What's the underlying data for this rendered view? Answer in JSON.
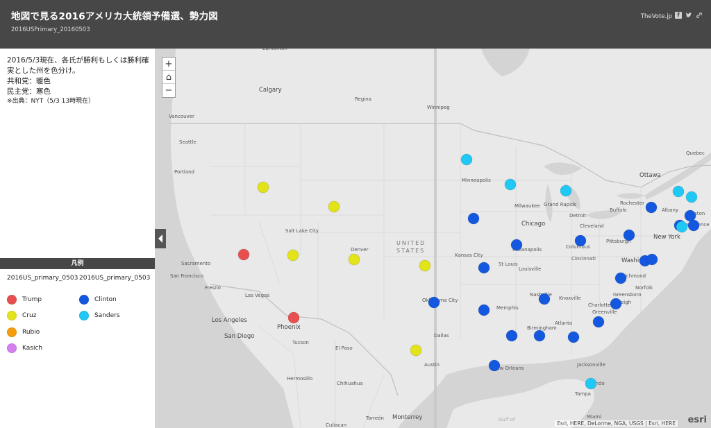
{
  "header": {
    "title": "地図で見る2016アメリカ大統領予備選、勢力図",
    "subtitle": "2016USPrimary_20160503",
    "brand": "TheVote.jp",
    "social_icons": [
      "facebook-icon",
      "twitter-icon",
      "link-icon"
    ]
  },
  "description": {
    "line1": "2016/5/3現在、各氏が勝利もしくは勝利確",
    "line2": "実とした州を色分け。",
    "line3": "共和党：暖色",
    "line4": "民主党：寒色",
    "line5": "※出典：NYT（5/3 13時現在）"
  },
  "legend": {
    "title": "凡例",
    "republican": {
      "header": "2016US_primary_0503",
      "items": [
        {
          "label": "Trump",
          "color": "#e85050"
        },
        {
          "label": "Cruz",
          "color": "#e3e31a"
        },
        {
          "label": "Rubio",
          "color": "#f59e0b"
        },
        {
          "label": "Kasich",
          "color": "#d580f0"
        }
      ]
    },
    "democratic": {
      "header": "2016US_primary_0503",
      "items": [
        {
          "label": "Clinton",
          "color": "#1458e0"
        },
        {
          "label": "Sanders",
          "color": "#20c8f5"
        }
      ]
    }
  },
  "map": {
    "zoom_in": "+",
    "home": "⌂",
    "zoom_out": "−",
    "attribution": "Esri, HERE, DeLorme, NGA, USGS | Esri, HERE",
    "logo": "esri",
    "country_label": "UNITED STATES",
    "water_label": "Gulf of Mexico",
    "places": [
      {
        "name": "Edmonton"
      },
      {
        "name": "Calgary"
      },
      {
        "name": "Regina"
      },
      {
        "name": "Winnipeg"
      },
      {
        "name": "Vancouver"
      },
      {
        "name": "Seattle"
      },
      {
        "name": "Portland"
      },
      {
        "name": "Quebec"
      },
      {
        "name": "Ottawa"
      },
      {
        "name": "Minneapolis"
      },
      {
        "name": "Milwaukee"
      },
      {
        "name": "Grand Rapids"
      },
      {
        "name": "Detroit"
      },
      {
        "name": "Rochester"
      },
      {
        "name": "Buffalo"
      },
      {
        "name": "Albany"
      },
      {
        "name": "Boston"
      },
      {
        "name": "Providence"
      },
      {
        "name": "Chicago"
      },
      {
        "name": "Cleveland"
      },
      {
        "name": "Salt Lake City"
      },
      {
        "name": "Denver"
      },
      {
        "name": "Sacramento"
      },
      {
        "name": "San Francisco"
      },
      {
        "name": "Fresno"
      },
      {
        "name": "Las Vegas"
      },
      {
        "name": "Los Angeles"
      },
      {
        "name": "San Diego"
      },
      {
        "name": "Phoenix"
      },
      {
        "name": "Tucson"
      },
      {
        "name": "El Paso"
      },
      {
        "name": "Kansas City"
      },
      {
        "name": "St Louis"
      },
      {
        "name": "Indianapolis"
      },
      {
        "name": "Columbus"
      },
      {
        "name": "Cincinnati"
      },
      {
        "name": "Louisville"
      },
      {
        "name": "Pittsburgh"
      },
      {
        "name": "New York"
      },
      {
        "name": "Washington"
      },
      {
        "name": "Richmond"
      },
      {
        "name": "Norfolk"
      },
      {
        "name": "Nashville"
      },
      {
        "name": "Knoxville"
      },
      {
        "name": "Greensboro"
      },
      {
        "name": "Charlotte"
      },
      {
        "name": "Raleigh"
      },
      {
        "name": "Greenville"
      },
      {
        "name": "Memphis"
      },
      {
        "name": "Oklahoma City"
      },
      {
        "name": "Dallas"
      },
      {
        "name": "Austin"
      },
      {
        "name": "Birmingham"
      },
      {
        "name": "Atlanta"
      },
      {
        "name": "New Orleans"
      },
      {
        "name": "Jacksonville"
      },
      {
        "name": "Orlando"
      },
      {
        "name": "Tampa"
      },
      {
        "name": "Miami"
      },
      {
        "name": "Hermosillo"
      },
      {
        "name": "Chihuahua"
      },
      {
        "name": "Torreón"
      },
      {
        "name": "Monterrey"
      },
      {
        "name": "Culiacan"
      }
    ],
    "state_markers": [
      {
        "winner": "Cruz"
      },
      {
        "winner": "Cruz"
      },
      {
        "winner": "Trump"
      },
      {
        "winner": "Cruz"
      },
      {
        "winner": "Cruz"
      },
      {
        "winner": "Cruz"
      },
      {
        "winner": "Trump"
      },
      {
        "winner": "Cruz"
      },
      {
        "winner": "Clinton"
      },
      {
        "winner": "Sanders"
      },
      {
        "winner": "Sanders"
      },
      {
        "winner": "Sanders"
      },
      {
        "winner": "Sanders"
      },
      {
        "winner": "Sanders"
      },
      {
        "winner": "Clinton"
      },
      {
        "winner": "Clinton"
      },
      {
        "winner": "Clinton"
      },
      {
        "winner": "Clinton"
      },
      {
        "winner": "Sanders"
      },
      {
        "winner": "Clinton"
      },
      {
        "winner": "Clinton"
      },
      {
        "winner": "Clinton"
      },
      {
        "winner": "Clinton"
      },
      {
        "winner": "Clinton"
      },
      {
        "winner": "Clinton"
      },
      {
        "winner": "Clinton"
      },
      {
        "winner": "Clinton"
      },
      {
        "winner": "Clinton"
      },
      {
        "winner": "Clinton"
      },
      {
        "winner": "Clinton"
      },
      {
        "winner": "Clinton"
      },
      {
        "winner": "Clinton"
      },
      {
        "winner": "Clinton"
      },
      {
        "winner": "Clinton"
      },
      {
        "winner": "Clinton"
      },
      {
        "winner": "Sanders"
      }
    ]
  }
}
